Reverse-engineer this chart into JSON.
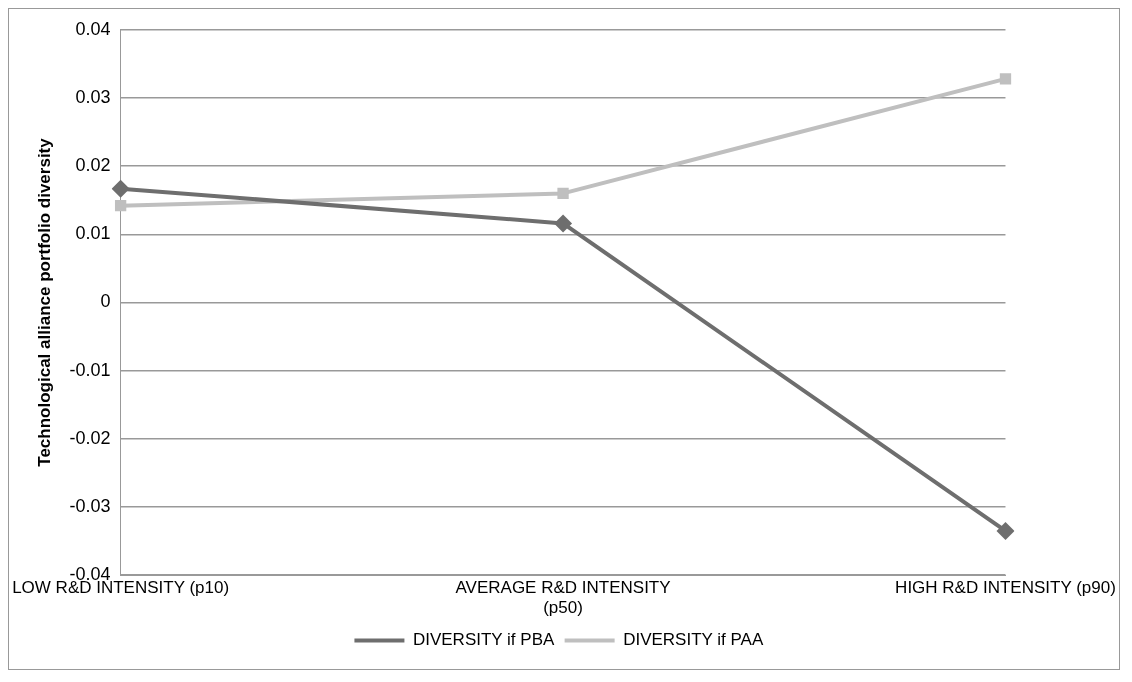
{
  "chart_data": {
    "type": "line",
    "ylabel": "Technological alliance portfolio diversity",
    "categories": [
      [
        "LOW R&D INTENSITY (p10)"
      ],
      [
        "AVERAGE R&D INTENSITY",
        "(p50)"
      ],
      [
        "HIGH R&D INTENSITY (p90)"
      ]
    ],
    "series": [
      {
        "name": "DIVERSITY if PBA",
        "color": "#6e6e6e",
        "marker": "diamond",
        "values": [
          0.0167,
          0.0116,
          -0.0335
        ]
      },
      {
        "name": "DIVERSITY if PAA",
        "color": "#bfbfbf",
        "marker": "square",
        "values": [
          0.0142,
          0.016,
          0.0328
        ]
      }
    ],
    "ylim": [
      -0.04,
      0.04
    ],
    "yticks": [
      -0.04,
      -0.03,
      -0.02,
      -0.01,
      0,
      0.01,
      0.02,
      0.03,
      0.04
    ],
    "grid": "y",
    "legend": "bottom",
    "line_style": "solid"
  }
}
